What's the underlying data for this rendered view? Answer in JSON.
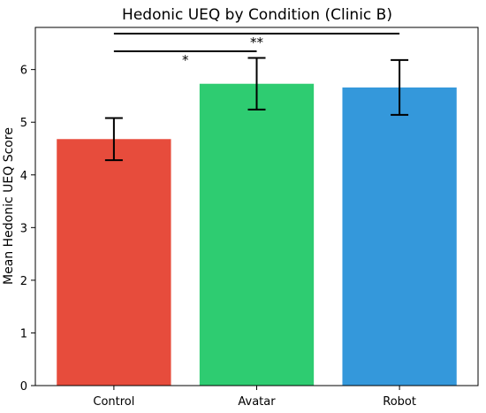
{
  "chart_data": {
    "type": "bar",
    "title": "Hedonic UEQ by Condition (Clinic B)",
    "xlabel": "",
    "ylabel": "Mean Hedonic UEQ Score",
    "categories": [
      "Control",
      "Avatar",
      "Robot"
    ],
    "values": [
      4.68,
      5.73,
      5.66
    ],
    "errors": [
      0.4,
      0.49,
      0.52
    ],
    "colors": [
      "#e74c3c",
      "#2ecc71",
      "#3498db"
    ],
    "ylim": [
      0,
      6.8
    ],
    "yticks": [
      "0",
      "1",
      "2",
      "3",
      "4",
      "5",
      "6"
    ],
    "grid": false,
    "significance": [
      {
        "from": "Control",
        "to": "Avatar",
        "label": "*"
      },
      {
        "from": "Control",
        "to": "Robot",
        "label": "**"
      }
    ]
  }
}
